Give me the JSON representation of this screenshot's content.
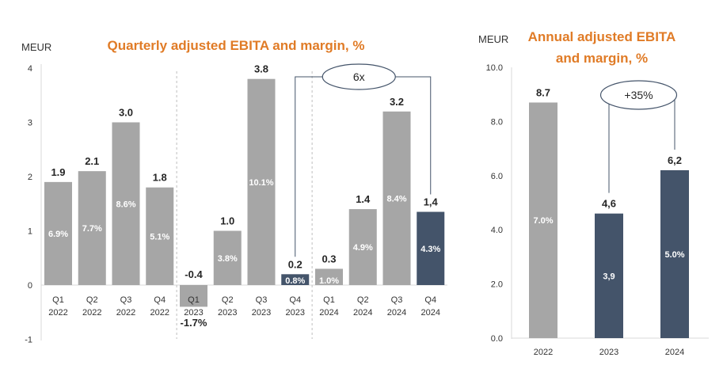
{
  "chart_data": [
    {
      "type": "bar",
      "title": "Quarterly adjusted EBITA and margin, %",
      "unit_label": "MEUR",
      "ylim": [
        -1,
        4
      ],
      "yticks": [
        "4",
        "3",
        "2",
        "1",
        "0",
        "-1"
      ],
      "ytick_values": [
        4,
        3,
        2,
        1,
        0,
        -1
      ],
      "categories": [
        [
          "Q1",
          "2022"
        ],
        [
          "Q2",
          "2022"
        ],
        [
          "Q3",
          "2022"
        ],
        [
          "Q4",
          "2022"
        ],
        [
          "Q1",
          "2023"
        ],
        [
          "Q2",
          "2023"
        ],
        [
          "Q3",
          "2023"
        ],
        [
          "Q4",
          "2023"
        ],
        [
          "Q1",
          "2024"
        ],
        [
          "Q2",
          "2024"
        ],
        [
          "Q3",
          "2024"
        ],
        [
          "Q4",
          "2024"
        ]
      ],
      "values": [
        1.9,
        2.1,
        3.0,
        1.8,
        -0.4,
        1.0,
        3.8,
        0.2,
        0.3,
        1.4,
        3.2,
        1.35
      ],
      "value_labels": [
        "1.9",
        "2.1",
        "3.0",
        "1.8",
        "-0.4",
        "1.0",
        "3.8",
        "0.2",
        "0.3",
        "1.4",
        "3.2",
        "1,4"
      ],
      "margin_labels": [
        "6.9%",
        "7.7%",
        "8.6%",
        "5.1%",
        "-1.7%",
        "3.8%",
        "10.1%",
        "0.8%",
        "1.0%",
        "4.9%",
        "8.4%",
        "4.3%"
      ],
      "highlighted": [
        7,
        11
      ],
      "colors": {
        "default": "#a6a6a6",
        "highlight": "#44546a",
        "title": "#e07b26"
      },
      "annotation": {
        "text": "6x",
        "from": 7,
        "to": 11
      },
      "separators_after": [
        3,
        7
      ],
      "grid": false
    },
    {
      "type": "bar",
      "title_lines": [
        "Annual adjusted EBITA",
        "and margin, %"
      ],
      "unit_label": "MEUR",
      "ylim": [
        0,
        10
      ],
      "yticks": [
        "10.0",
        "8.0",
        "6.0",
        "4.0",
        "2.0",
        "0.0"
      ],
      "ytick_values": [
        10,
        8,
        6,
        4,
        2,
        0
      ],
      "categories": [
        "2022",
        "2023",
        "2024"
      ],
      "values": [
        8.7,
        4.6,
        6.2
      ],
      "value_labels": [
        "8.7",
        "4,6",
        "6,2"
      ],
      "margin_labels": [
        "7.0%",
        "3,9",
        "5.0%"
      ],
      "highlighted": [
        1,
        2
      ],
      "colors": {
        "default": "#a6a6a6",
        "highlight": "#44546a",
        "title": "#e07b26"
      },
      "annotation": {
        "text": "+35%",
        "from": 1,
        "to": 2
      },
      "grid": false
    }
  ]
}
